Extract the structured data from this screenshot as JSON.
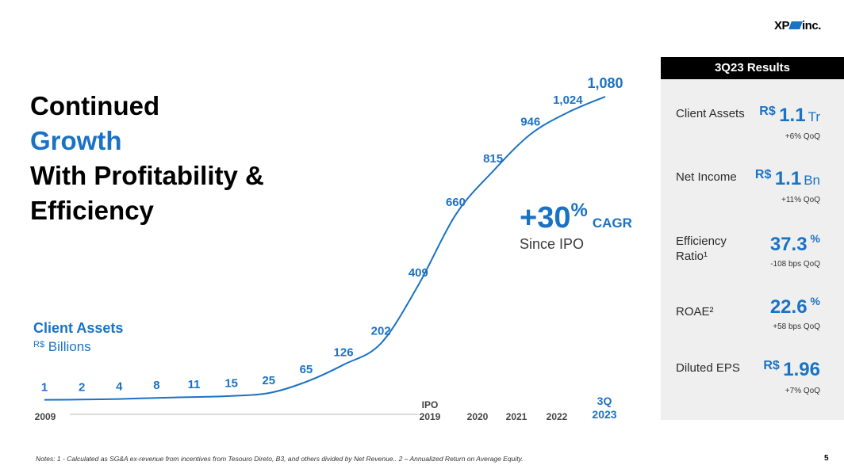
{
  "logo": {
    "left": "XP",
    "right": "inc."
  },
  "headline": {
    "line1": "Continued",
    "line2": "Growth",
    "line3": "With Profitability &",
    "line4": "Efficiency"
  },
  "colors": {
    "accent": "#1a72c4",
    "panel_bg": "#efefef",
    "panel_header": "#000000"
  },
  "chart_data": {
    "type": "line",
    "title": "Client Assets",
    "subtitle_currency": "R$",
    "subtitle_unit": "Billions",
    "labels": [
      "1",
      "2",
      "4",
      "8",
      "11",
      "15",
      "25",
      "65",
      "126",
      "202",
      "409",
      "660",
      "815",
      "946",
      "1,024",
      "1,080"
    ],
    "values": [
      1,
      2,
      4,
      8,
      11,
      15,
      25,
      65,
      126,
      202,
      409,
      660,
      815,
      946,
      1024,
      1080
    ],
    "x_axis": {
      "start": "2009",
      "ipo_label": "IPO",
      "ipo_year": "2019",
      "years": [
        "2020",
        "2021",
        "2022"
      ],
      "end_line1": "3Q",
      "end_line2": "2023"
    }
  },
  "cagr": {
    "value": "+30",
    "pct": "%",
    "label": "CAGR",
    "since": "Since IPO"
  },
  "panel": {
    "title": "3Q23 Results",
    "metrics": [
      {
        "label": "Client Assets",
        "currency": "R$",
        "value": "1.1",
        "unit": "Tr",
        "suffix": "",
        "change": "+6% QoQ"
      },
      {
        "label": "Net Income",
        "currency": "R$",
        "value": "1.1",
        "unit": "Bn",
        "suffix": "",
        "change": "+11% QoQ"
      },
      {
        "label": "Efficiency Ratio¹",
        "currency": "",
        "value": "37.3",
        "unit": "",
        "suffix": "%",
        "change": "-108 bps QoQ"
      },
      {
        "label": "ROAE²",
        "currency": "",
        "value": "22.6",
        "unit": "",
        "suffix": "%",
        "change": "+58 bps QoQ"
      },
      {
        "label": "Diluted EPS",
        "currency": "R$",
        "value": "1.96",
        "unit": "",
        "suffix": "",
        "change": "+7% QoQ"
      }
    ]
  },
  "notes": "Notes: 1 - Calculated as SG&A ex-revenue from incentives from Tesouro Direto, B3, and others divided by Net Revenue.. 2 – Annualized Return on Average Equity.",
  "page_number": "5"
}
